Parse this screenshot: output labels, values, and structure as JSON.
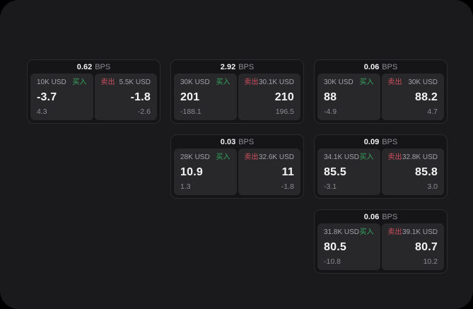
{
  "window": {
    "outer_bg": "#000000",
    "panel_bg": "#1a1a1c"
  },
  "colors": {
    "buy_green": "#35a55e",
    "sell_red": "#cf4f5f",
    "value_white": "#f5f5f6",
    "label_gray": "#a2a2a7",
    "delta_gray": "#8b8b90",
    "card_bg": "#151517",
    "pane_bg": "#28282b"
  },
  "labels": {
    "bps_suffix": "BPS",
    "buy": "买入",
    "sell": "卖出"
  },
  "cards": [
    {
      "bps": "0.62",
      "buy": {
        "amount": "10K USD",
        "value": "-3.7",
        "delta": "4.3"
      },
      "sell": {
        "amount": "5.5K USD",
        "value": "-1.8",
        "delta": "-2.6"
      }
    },
    {
      "bps": "2.92",
      "buy": {
        "amount": "30K USD",
        "value": "201",
        "delta": "-188.1"
      },
      "sell": {
        "amount": "30.1K USD",
        "value": "210",
        "delta": "196.5"
      }
    },
    {
      "bps": "0.06",
      "buy": {
        "amount": "30K USD",
        "value": "88",
        "delta": "-4.9"
      },
      "sell": {
        "amount": "30K USD",
        "value": "88.2",
        "delta": "4.7"
      }
    },
    {
      "bps": "0.03",
      "buy": {
        "amount": "28K USD",
        "value": "10.9",
        "delta": "1.3"
      },
      "sell": {
        "amount": "32.6K USD",
        "value": "11",
        "delta": "-1.8"
      }
    },
    {
      "bps": "0.09",
      "buy": {
        "amount": "34.1K USD",
        "value": "85.5",
        "delta": "-3.1"
      },
      "sell": {
        "amount": "32.8K USD",
        "value": "85.8",
        "delta": "3.0"
      }
    },
    {
      "bps": "0.06",
      "buy": {
        "amount": "31.8K USD",
        "value": "80.5",
        "delta": "-10.8"
      },
      "sell": {
        "amount": "39.1K USD",
        "value": "80.7",
        "delta": "10.2"
      }
    }
  ]
}
